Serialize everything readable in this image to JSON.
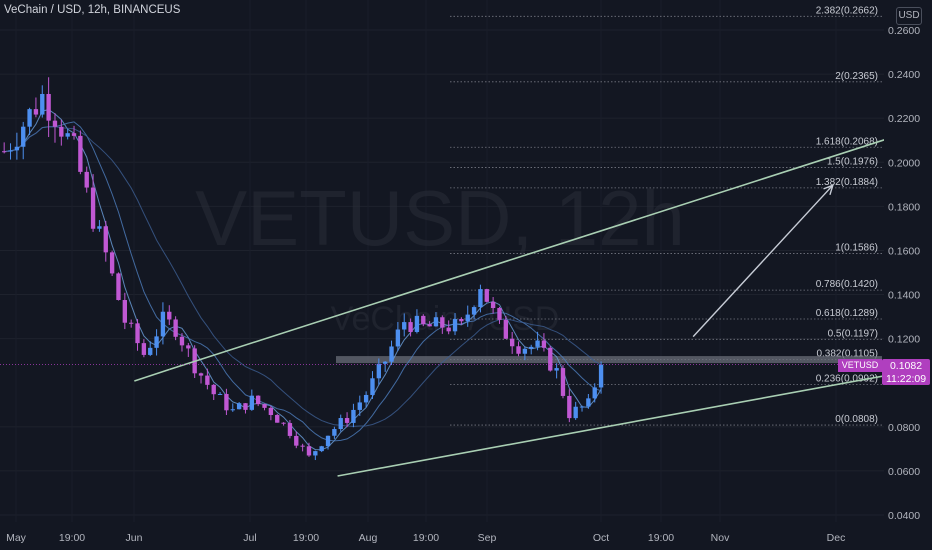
{
  "header": {
    "symbol_title": "VeChain / USD, 12h, BINANCEUS",
    "currency_button": "USD"
  },
  "watermark": {
    "main": "VETUSD, 12h",
    "sub": "VeChain / USD"
  },
  "price_badge": {
    "symbol": "VETUSD",
    "price": "0.1082",
    "countdown": "11:22:09",
    "color": "#b03fbf"
  },
  "colors": {
    "background": "#131722",
    "bull_candle": "#4d8ff0",
    "bear_candle": "#c058d3",
    "channel_line": "#a9cfb3",
    "ma_line": "#5d86b8"
  },
  "chart_data": {
    "type": "candlestick",
    "y_axis": {
      "scale": "linear",
      "range": [
        0.04,
        0.27
      ],
      "ticks": [
        "0.2600",
        "0.2400",
        "0.2200",
        "0.2000",
        "0.1800",
        "0.1600",
        "0.1400",
        "0.1200",
        "0.0800",
        "0.0600",
        "0.0400"
      ]
    },
    "x_axis": {
      "ticks": [
        "May",
        "19:00",
        "Jun",
        "Jul",
        "19:00",
        "Aug",
        "19:00",
        "Sep",
        "Oct",
        "19:00",
        "Nov",
        "Dec"
      ]
    },
    "fib_levels": [
      {
        "label": "2.382(0.2662)",
        "value": 0.2662
      },
      {
        "label": "2(0.2365)",
        "value": 0.2365
      },
      {
        "label": "1.618(0.2068)",
        "value": 0.2068
      },
      {
        "label": "1.5(0.1976)",
        "value": 0.1976
      },
      {
        "label": "1.382(0.1884)",
        "value": 0.1884
      },
      {
        "label": "1(0.1586)",
        "value": 0.1586
      },
      {
        "label": "0.786(0.1420)",
        "value": 0.142
      },
      {
        "label": "0.618(0.1289)",
        "value": 0.1289
      },
      {
        "label": "0.5(0.1197)",
        "value": 0.1197
      },
      {
        "label": "0.382(0.1105)",
        "value": 0.1105
      },
      {
        "label": "0.236(0.0992)",
        "value": 0.0992
      },
      {
        "label": "0(0.0808)",
        "value": 0.0808
      }
    ],
    "last_price": 0.1082,
    "resistance_level": 0.1105,
    "price_path": [
      {
        "t": 0,
        "v": 0.205
      },
      {
        "t": 6,
        "v": 0.23
      },
      {
        "t": 8,
        "v": 0.222
      },
      {
        "t": 11,
        "v": 0.205
      },
      {
        "t": 14,
        "v": 0.175
      },
      {
        "t": 16,
        "v": 0.158
      },
      {
        "t": 19,
        "v": 0.128
      },
      {
        "t": 22,
        "v": 0.113
      },
      {
        "t": 25,
        "v": 0.128
      },
      {
        "t": 27,
        "v": 0.125
      },
      {
        "t": 30,
        "v": 0.108
      },
      {
        "t": 33,
        "v": 0.095
      },
      {
        "t": 36,
        "v": 0.087
      },
      {
        "t": 39,
        "v": 0.092
      },
      {
        "t": 42,
        "v": 0.087
      },
      {
        "t": 45,
        "v": 0.078
      },
      {
        "t": 48,
        "v": 0.066
      },
      {
        "t": 51,
        "v": 0.077
      },
      {
        "t": 54,
        "v": 0.084
      },
      {
        "t": 57,
        "v": 0.095
      },
      {
        "t": 60,
        "v": 0.11
      },
      {
        "t": 63,
        "v": 0.128
      },
      {
        "t": 66,
        "v": 0.125
      },
      {
        "t": 69,
        "v": 0.126
      },
      {
        "t": 72,
        "v": 0.125
      },
      {
        "t": 75,
        "v": 0.145
      },
      {
        "t": 78,
        "v": 0.125
      },
      {
        "t": 81,
        "v": 0.117
      },
      {
        "t": 84,
        "v": 0.116
      },
      {
        "t": 87,
        "v": 0.105
      },
      {
        "t": 89,
        "v": 0.086
      },
      {
        "t": 92,
        "v": 0.09
      },
      {
        "t": 94,
        "v": 0.108
      }
    ],
    "channel": {
      "upper": [
        {
          "t": 26.5,
          "v": 0.106
        },
        {
          "t": 148,
          "v": 0.2184
        }
      ],
      "lower": [
        {
          "t": 53,
          "v": 0.0577
        },
        {
          "t": 147,
          "v": 0.1073
        }
      ],
      "left_stub": [
        {
          "t": 21,
          "v": 0.1008
        },
        {
          "t": 26.5,
          "v": 0.106
        }
      ]
    },
    "projection_arrow": [
      {
        "t": 109,
        "v": 0.1209
      },
      {
        "t": 131,
        "v": 0.1896
      }
    ]
  }
}
